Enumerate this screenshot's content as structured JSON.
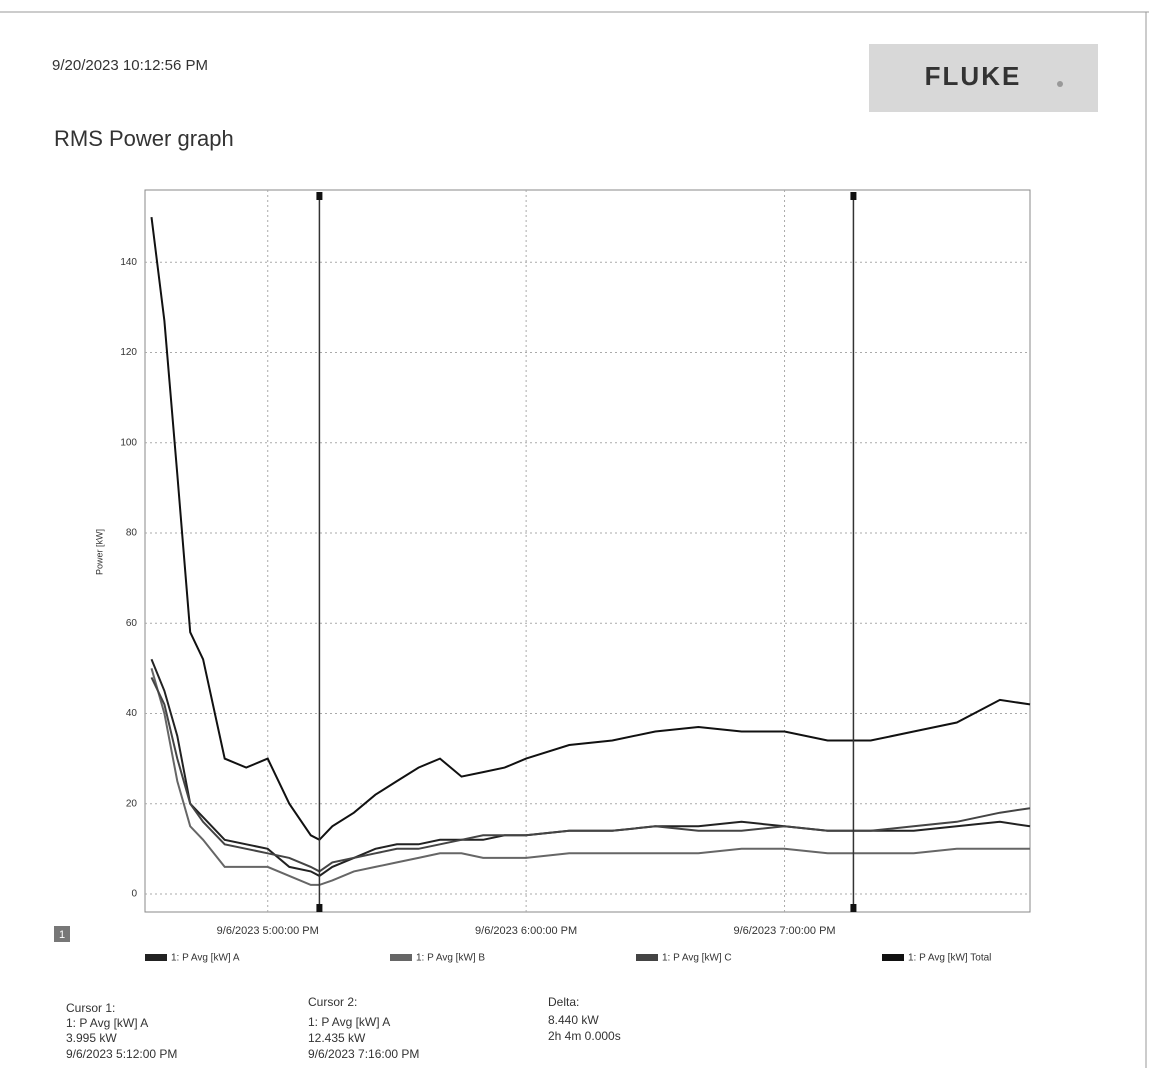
{
  "header": {
    "timestamp": "9/20/2023 10:12:56 PM",
    "logo": "FLUKE"
  },
  "chart_data": {
    "type": "line",
    "title": "RMS Power graph",
    "y_label": "Power [kW]",
    "panel_label": "1",
    "x": [
      "9/6/2023 4:33:00 PM",
      "9/6/2023 4:36:00 PM",
      "9/6/2023 4:39:00 PM",
      "9/6/2023 4:42:00 PM",
      "9/6/2023 4:45:00 PM",
      "9/6/2023 4:50:00 PM",
      "9/6/2023 4:55:00 PM",
      "9/6/2023 5:00:00 PM",
      "9/6/2023 5:05:00 PM",
      "9/6/2023 5:10:00 PM",
      "9/6/2023 5:12:00 PM",
      "9/6/2023 5:15:00 PM",
      "9/6/2023 5:20:00 PM",
      "9/6/2023 5:25:00 PM",
      "9/6/2023 5:30:00 PM",
      "9/6/2023 5:35:00 PM",
      "9/6/2023 5:40:00 PM",
      "9/6/2023 5:45:00 PM",
      "9/6/2023 5:50:00 PM",
      "9/6/2023 5:55:00 PM",
      "9/6/2023 6:00:00 PM",
      "9/6/2023 6:10:00 PM",
      "9/6/2023 6:20:00 PM",
      "9/6/2023 6:30:00 PM",
      "9/6/2023 6:40:00 PM",
      "9/6/2023 6:50:00 PM",
      "9/6/2023 7:00:00 PM",
      "9/6/2023 7:10:00 PM",
      "9/6/2023 7:20:00 PM",
      "9/6/2023 7:30:00 PM",
      "9/6/2023 7:40:00 PM",
      "9/6/2023 7:50:00 PM",
      "9/6/2023 7:57:00 PM"
    ],
    "xlim": [
      "9/6/2023 4:31:30 PM",
      "9/6/2023 7:57:00 PM"
    ],
    "xticks": [
      "9/6/2023 5:00:00 PM",
      "9/6/2023 6:00:00 PM",
      "9/6/2023 7:00:00 PM"
    ],
    "ylim": [
      -4,
      156
    ],
    "yticks": [
      0,
      20,
      40,
      60,
      80,
      100,
      120,
      140
    ],
    "grid": true,
    "series": [
      {
        "name": "1: P Avg [kW] A",
        "color": "#222222",
        "values": [
          52,
          45,
          35,
          20,
          17,
          12,
          11,
          10,
          6,
          5,
          4,
          6,
          8,
          10,
          11,
          11,
          12,
          12,
          12,
          13,
          13,
          14,
          14,
          15,
          15,
          16,
          15,
          14,
          14,
          14,
          15,
          16,
          15
        ]
      },
      {
        "name": "1: P Avg [kW] B",
        "color": "#666666",
        "values": [
          50,
          40,
          25,
          15,
          12,
          6,
          6,
          6,
          4,
          2,
          2,
          3,
          5,
          6,
          7,
          8,
          9,
          9,
          8,
          8,
          8,
          9,
          9,
          9,
          9,
          10,
          10,
          9,
          9,
          9,
          10,
          10,
          10
        ]
      },
      {
        "name": "1: P Avg [kW] C",
        "color": "#444444",
        "values": [
          48,
          42,
          30,
          20,
          16,
          11,
          10,
          9,
          8,
          6,
          5,
          7,
          8,
          9,
          10,
          10,
          11,
          12,
          13,
          13,
          13,
          14,
          14,
          15,
          14,
          14,
          15,
          14,
          14,
          15,
          16,
          18,
          19
        ]
      },
      {
        "name": "1: P Avg [kW] Total",
        "color": "#111111",
        "values": [
          150,
          127,
          93,
          58,
          52,
          30,
          28,
          30,
          20,
          13,
          12,
          15,
          18,
          22,
          25,
          28,
          30,
          26,
          27,
          28,
          30,
          33,
          34,
          36,
          37,
          36,
          36,
          34,
          34,
          36,
          38,
          43,
          42
        ]
      }
    ]
  },
  "cursors": [
    {
      "title": "Cursor 1:",
      "series": "1: P Avg [kW] A",
      "value": "3.995 kW",
      "time": "9/6/2023 5:12:00 PM"
    },
    {
      "title": "Cursor 2:",
      "series": "1: P Avg [kW] A",
      "value": "12.435 kW",
      "time": "9/6/2023 7:16:00 PM"
    }
  ],
  "delta": {
    "title": "Delta:",
    "value": "8.440 kW",
    "duration": "2h 4m 0.000s"
  }
}
